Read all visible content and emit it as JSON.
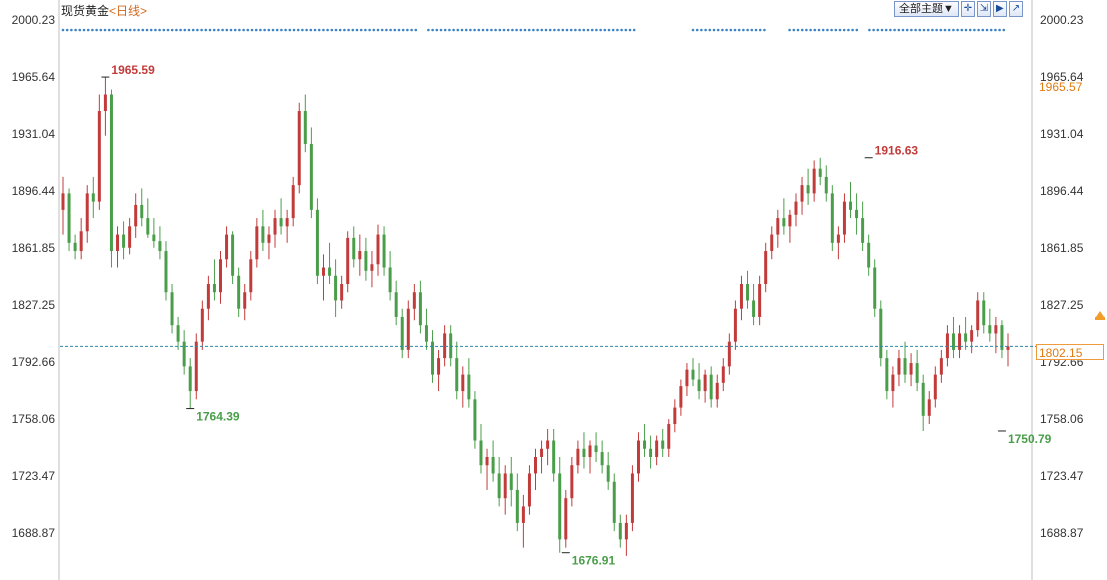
{
  "header": {
    "instrument": "现货黄金",
    "period": "<日线>"
  },
  "toolbar": {
    "theme_button": "全部主题▼",
    "icons": [
      "crosshair-icon",
      "zoom-out-icon",
      "pan-right-icon",
      "export-icon"
    ]
  },
  "price_readouts": {
    "orange_level": "1965.57",
    "last_price": "1802.15"
  },
  "colors": {
    "up": "#c23b3b",
    "down": "#4a9e4a",
    "dotted_line": "#3b82c4",
    "last_line": "#2a8aa8",
    "accent_orange": "#e07b12"
  },
  "chart_data": {
    "type": "candlestick",
    "ylim": [
      1676.91,
      2000.23
    ],
    "y_ticks": [
      "2000.23",
      "1965.64",
      "1931.04",
      "1896.44",
      "1861.85",
      "1827.25",
      "1792.66",
      "1758.06",
      "1723.47",
      "1688.87"
    ],
    "grid": false,
    "annotations": [
      {
        "label": "1965.59",
        "value": 1965.59,
        "kind": "high",
        "index": 7
      },
      {
        "label": "1764.39",
        "value": 1764.39,
        "kind": "low",
        "index": 21
      },
      {
        "label": "1676.91",
        "value": 1676.91,
        "kind": "low",
        "index": 83
      },
      {
        "label": "1916.63",
        "value": 1916.63,
        "kind": "high",
        "index": 133
      },
      {
        "label": "1750.79",
        "value": 1750.79,
        "kind": "low",
        "index": 155
      }
    ],
    "last_price": 1802.15,
    "candles": [
      [
        1885,
        1905,
        1870,
        1895
      ],
      [
        1895,
        1898,
        1860,
        1865
      ],
      [
        1865,
        1870,
        1855,
        1860
      ],
      [
        1860,
        1880,
        1855,
        1872
      ],
      [
        1872,
        1900,
        1865,
        1895
      ],
      [
        1895,
        1905,
        1880,
        1890
      ],
      [
        1890,
        1955,
        1885,
        1945
      ],
      [
        1945,
        1965.59,
        1930,
        1955
      ],
      [
        1955,
        1958,
        1850,
        1860
      ],
      [
        1860,
        1875,
        1850,
        1870
      ],
      [
        1870,
        1878,
        1855,
        1862
      ],
      [
        1862,
        1880,
        1858,
        1875
      ],
      [
        1875,
        1895,
        1868,
        1888
      ],
      [
        1888,
        1898,
        1875,
        1880
      ],
      [
        1880,
        1892,
        1868,
        1870
      ],
      [
        1870,
        1880,
        1862,
        1866
      ],
      [
        1866,
        1875,
        1855,
        1860
      ],
      [
        1860,
        1866,
        1830,
        1835
      ],
      [
        1835,
        1840,
        1810,
        1815
      ],
      [
        1815,
        1820,
        1800,
        1805
      ],
      [
        1805,
        1812,
        1785,
        1790
      ],
      [
        1790,
        1795,
        1764.39,
        1775
      ],
      [
        1775,
        1810,
        1770,
        1805
      ],
      [
        1805,
        1830,
        1800,
        1825
      ],
      [
        1825,
        1845,
        1818,
        1840
      ],
      [
        1840,
        1855,
        1830,
        1835
      ],
      [
        1835,
        1860,
        1828,
        1855
      ],
      [
        1855,
        1875,
        1850,
        1870
      ],
      [
        1870,
        1872,
        1840,
        1845
      ],
      [
        1845,
        1850,
        1820,
        1825
      ],
      [
        1825,
        1840,
        1818,
        1835
      ],
      [
        1835,
        1860,
        1830,
        1855
      ],
      [
        1855,
        1880,
        1850,
        1875
      ],
      [
        1875,
        1885,
        1860,
        1865
      ],
      [
        1865,
        1875,
        1855,
        1870
      ],
      [
        1870,
        1885,
        1862,
        1880
      ],
      [
        1880,
        1892,
        1870,
        1875
      ],
      [
        1875,
        1885,
        1865,
        1880
      ],
      [
        1880,
        1905,
        1875,
        1900
      ],
      [
        1900,
        1950,
        1895,
        1945
      ],
      [
        1945,
        1955,
        1920,
        1925
      ],
      [
        1925,
        1935,
        1880,
        1885
      ],
      [
        1885,
        1892,
        1840,
        1845
      ],
      [
        1845,
        1858,
        1830,
        1850
      ],
      [
        1850,
        1865,
        1840,
        1845
      ],
      [
        1845,
        1855,
        1820,
        1830
      ],
      [
        1830,
        1845,
        1825,
        1840
      ],
      [
        1840,
        1872,
        1835,
        1868
      ],
      [
        1868,
        1875,
        1850,
        1855
      ],
      [
        1855,
        1870,
        1845,
        1860
      ],
      [
        1860,
        1868,
        1842,
        1848
      ],
      [
        1848,
        1860,
        1838,
        1852
      ],
      [
        1852,
        1876,
        1845,
        1870
      ],
      [
        1870,
        1875,
        1845,
        1850
      ],
      [
        1850,
        1860,
        1830,
        1835
      ],
      [
        1835,
        1842,
        1815,
        1820
      ],
      [
        1820,
        1825,
        1795,
        1800
      ],
      [
        1800,
        1830,
        1795,
        1825
      ],
      [
        1825,
        1840,
        1818,
        1835
      ],
      [
        1835,
        1842,
        1810,
        1815
      ],
      [
        1815,
        1825,
        1800,
        1805
      ],
      [
        1805,
        1812,
        1780,
        1785
      ],
      [
        1785,
        1800,
        1775,
        1795
      ],
      [
        1795,
        1815,
        1790,
        1810
      ],
      [
        1810,
        1815,
        1790,
        1795
      ],
      [
        1795,
        1805,
        1770,
        1775
      ],
      [
        1775,
        1790,
        1765,
        1785
      ],
      [
        1785,
        1795,
        1765,
        1770
      ],
      [
        1770,
        1775,
        1740,
        1745
      ],
      [
        1745,
        1755,
        1725,
        1730
      ],
      [
        1730,
        1740,
        1715,
        1735
      ],
      [
        1735,
        1745,
        1720,
        1725
      ],
      [
        1725,
        1735,
        1705,
        1710
      ],
      [
        1710,
        1730,
        1700,
        1725
      ],
      [
        1725,
        1735,
        1705,
        1715
      ],
      [
        1715,
        1725,
        1690,
        1695
      ],
      [
        1695,
        1712,
        1680,
        1705
      ],
      [
        1705,
        1730,
        1700,
        1725
      ],
      [
        1725,
        1740,
        1715,
        1735
      ],
      [
        1735,
        1745,
        1725,
        1740
      ],
      [
        1740,
        1752,
        1730,
        1745
      ],
      [
        1745,
        1752,
        1720,
        1725
      ],
      [
        1725,
        1735,
        1676.91,
        1685
      ],
      [
        1685,
        1715,
        1680,
        1710
      ],
      [
        1710,
        1735,
        1705,
        1730
      ],
      [
        1730,
        1745,
        1725,
        1740
      ],
      [
        1740,
        1750,
        1728,
        1735
      ],
      [
        1735,
        1745,
        1725,
        1742
      ],
      [
        1742,
        1750,
        1732,
        1738
      ],
      [
        1738,
        1745,
        1725,
        1730
      ],
      [
        1730,
        1738,
        1715,
        1720
      ],
      [
        1720,
        1725,
        1690,
        1695
      ],
      [
        1695,
        1700,
        1680,
        1685
      ],
      [
        1685,
        1700,
        1675,
        1695
      ],
      [
        1695,
        1730,
        1690,
        1725
      ],
      [
        1725,
        1750,
        1720,
        1745
      ],
      [
        1745,
        1755,
        1735,
        1740
      ],
      [
        1740,
        1748,
        1728,
        1735
      ],
      [
        1735,
        1748,
        1730,
        1745
      ],
      [
        1745,
        1752,
        1735,
        1740
      ],
      [
        1740,
        1758,
        1735,
        1755
      ],
      [
        1755,
        1770,
        1750,
        1765
      ],
      [
        1765,
        1782,
        1760,
        1778
      ],
      [
        1778,
        1792,
        1772,
        1788
      ],
      [
        1788,
        1795,
        1778,
        1782
      ],
      [
        1782,
        1792,
        1770,
        1775
      ],
      [
        1775,
        1788,
        1768,
        1785
      ],
      [
        1785,
        1790,
        1765,
        1770
      ],
      [
        1770,
        1785,
        1765,
        1780
      ],
      [
        1780,
        1795,
        1775,
        1790
      ],
      [
        1790,
        1810,
        1785,
        1805
      ],
      [
        1805,
        1830,
        1800,
        1825
      ],
      [
        1825,
        1845,
        1818,
        1840
      ],
      [
        1840,
        1848,
        1825,
        1830
      ],
      [
        1830,
        1840,
        1815,
        1820
      ],
      [
        1820,
        1845,
        1815,
        1840
      ],
      [
        1840,
        1865,
        1835,
        1860
      ],
      [
        1860,
        1875,
        1855,
        1870
      ],
      [
        1870,
        1885,
        1862,
        1880
      ],
      [
        1880,
        1892,
        1870,
        1875
      ],
      [
        1875,
        1885,
        1865,
        1882
      ],
      [
        1882,
        1895,
        1875,
        1890
      ],
      [
        1890,
        1905,
        1882,
        1900
      ],
      [
        1900,
        1910,
        1888,
        1895
      ],
      [
        1895,
        1915,
        1890,
        1910
      ],
      [
        1910,
        1916.63,
        1900,
        1905
      ],
      [
        1905,
        1912,
        1890,
        1895
      ],
      [
        1895,
        1900,
        1860,
        1865
      ],
      [
        1865,
        1875,
        1855,
        1870
      ],
      [
        1870,
        1895,
        1865,
        1890
      ],
      [
        1890,
        1902,
        1880,
        1885
      ],
      [
        1885,
        1895,
        1870,
        1880
      ],
      [
        1880,
        1890,
        1860,
        1865
      ],
      [
        1865,
        1870,
        1845,
        1850
      ],
      [
        1850,
        1855,
        1820,
        1825
      ],
      [
        1825,
        1830,
        1790,
        1795
      ],
      [
        1795,
        1800,
        1770,
        1775
      ],
      [
        1775,
        1790,
        1765,
        1785
      ],
      [
        1785,
        1800,
        1778,
        1795
      ],
      [
        1795,
        1805,
        1780,
        1785
      ],
      [
        1785,
        1798,
        1778,
        1792
      ],
      [
        1792,
        1800,
        1775,
        1780
      ],
      [
        1780,
        1785,
        1750.79,
        1760
      ],
      [
        1760,
        1775,
        1755,
        1770
      ],
      [
        1770,
        1790,
        1765,
        1785
      ],
      [
        1785,
        1800,
        1780,
        1795
      ],
      [
        1795,
        1815,
        1790,
        1810
      ],
      [
        1810,
        1820,
        1795,
        1800
      ],
      [
        1800,
        1815,
        1795,
        1810
      ],
      [
        1810,
        1820,
        1800,
        1805
      ],
      [
        1805,
        1815,
        1798,
        1812
      ],
      [
        1812,
        1835,
        1808,
        1830
      ],
      [
        1830,
        1835,
        1810,
        1815
      ],
      [
        1815,
        1825,
        1805,
        1810
      ],
      [
        1810,
        1820,
        1798,
        1815
      ],
      [
        1815,
        1818,
        1795,
        1800
      ],
      [
        1800,
        1810,
        1790,
        1802.15
      ]
    ]
  }
}
